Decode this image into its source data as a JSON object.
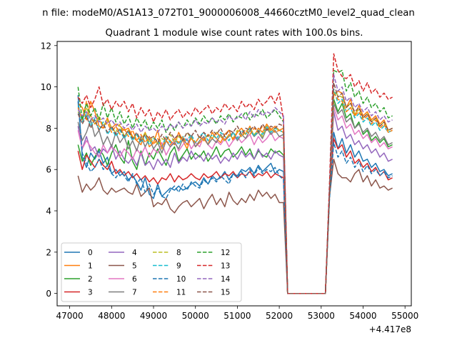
{
  "chart_data": {
    "type": "line",
    "suptitle": "n file: modeM0/AS1A13_072T01_9000006008_44660cztM0_level2_quad_clean",
    "title": "Quadrant 1 module wise count rates with 100.0s bins.",
    "xlabel": "",
    "ylabel": "",
    "x_offset_label": "+4.417e8",
    "xlim": [
      46700,
      55150
    ],
    "ylim": [
      -0.6,
      12.2
    ],
    "x_ticks": [
      47000,
      48000,
      49000,
      50000,
      51000,
      52000,
      53000,
      54000,
      55000
    ],
    "y_ticks": [
      0,
      2,
      4,
      6,
      8,
      10,
      12
    ],
    "grid": false,
    "legend": {
      "placement": "lower-left",
      "columns": 4
    },
    "segments": {
      "seg1": {
        "x_start": 47200,
        "x_end": 52100,
        "step": 100
      },
      "gap": {
        "x": [
          52200,
          53100
        ],
        "values": 0
      },
      "seg2": {
        "x_start": 53200,
        "x_end": 54700,
        "step": 100
      }
    },
    "series": [
      {
        "name": "0",
        "color": "#1f77b4",
        "style": "solid",
        "seg1": [
          9.6,
          6.6,
          6.1,
          6.8,
          6.5,
          6.9,
          6.3,
          6.6,
          5.8,
          6.0,
          5.7,
          5.9,
          5.5,
          5.7,
          5.4,
          5.0,
          5.6,
          4.8,
          4.6,
          5.3,
          4.7,
          4.9,
          5.1,
          5.0,
          5.2,
          5.0,
          5.1,
          5.3,
          5.4,
          5.2,
          5.6,
          5.3,
          5.7,
          5.5,
          5.6,
          5.9,
          5.5,
          5.8,
          5.7,
          6.0,
          5.9,
          6.1,
          5.8,
          6.2,
          5.9,
          6.1,
          6.3,
          5.8,
          6.0,
          5.9
        ],
        "seg2": [
          4.8,
          7.8,
          7.0,
          7.5,
          6.8,
          7.2,
          6.6,
          6.9,
          6.4,
          6.5,
          6.1,
          6.3,
          5.9,
          6.0,
          5.7,
          5.8
        ]
      },
      {
        "name": "1",
        "color": "#ff7f0e",
        "style": "solid",
        "seg1": [
          9.2,
          9.0,
          8.4,
          9.3,
          8.8,
          8.1,
          8.0,
          8.5,
          8.0,
          8.2,
          8.1,
          7.9,
          8.0,
          7.6,
          7.4,
          7.2,
          7.8,
          7.1,
          7.3,
          7.9,
          7.0,
          7.6,
          7.4,
          7.2,
          7.8,
          7.4,
          7.0,
          7.6,
          7.1,
          7.3,
          7.5,
          7.2,
          7.8,
          7.5,
          7.3,
          7.7,
          7.9,
          7.4,
          7.8,
          8.0,
          7.7,
          8.1,
          7.6,
          8.0,
          7.8,
          8.2,
          7.9,
          8.1,
          7.9,
          8.0
        ],
        "seg2": [
          5.0,
          9.6,
          9.8,
          9.7,
          9.0,
          9.4,
          8.6,
          9.1,
          8.6,
          8.8,
          8.4,
          8.6,
          8.2,
          8.4,
          7.9,
          8.0
        ]
      },
      {
        "name": "2",
        "color": "#2ca02c",
        "style": "solid",
        "seg1": [
          7.2,
          6.4,
          6.8,
          6.2,
          6.6,
          7.0,
          6.7,
          6.2,
          6.8,
          7.2,
          6.6,
          6.3,
          7.4,
          6.4,
          6.0,
          6.9,
          6.2,
          6.8,
          6.5,
          7.0,
          6.6,
          6.2,
          6.8,
          7.1,
          6.4,
          6.7,
          7.0,
          6.5,
          6.8,
          6.6,
          6.9,
          6.4,
          6.7,
          7.1,
          6.6,
          6.9,
          7.0,
          6.6,
          6.8,
          7.1,
          6.7,
          7.0,
          6.5,
          6.9,
          6.7,
          6.6,
          7.0,
          6.8,
          6.9,
          6.7
        ],
        "seg2": [
          4.8,
          9.4,
          8.8,
          9.2,
          8.5,
          8.7,
          8.0,
          8.3,
          7.7,
          7.9,
          7.4,
          7.6,
          7.3,
          7.5,
          7.1,
          7.2
        ]
      },
      {
        "name": "3",
        "color": "#d62728",
        "style": "solid",
        "seg1": [
          6.9,
          6.0,
          6.7,
          6.4,
          6.1,
          6.5,
          6.2,
          6.0,
          6.4,
          5.8,
          6.0,
          5.7,
          5.9,
          5.6,
          5.8,
          5.5,
          5.7,
          5.4,
          5.6,
          5.3,
          5.6,
          5.5,
          5.8,
          5.4,
          5.7,
          5.5,
          5.6,
          5.8,
          5.6,
          5.5,
          5.8,
          5.6,
          5.7,
          5.9,
          5.6,
          5.8,
          5.7,
          5.9,
          5.6,
          5.8,
          5.7,
          5.9,
          5.6,
          5.8,
          5.7,
          5.9,
          5.6,
          5.8,
          5.7,
          5.6
        ],
        "seg2": [
          4.9,
          7.5,
          7.0,
          7.2,
          6.6,
          6.9,
          6.3,
          6.5,
          6.1,
          6.3,
          5.9,
          6.1,
          5.7,
          5.9,
          5.5,
          5.6
        ]
      },
      {
        "name": "4",
        "color": "#9467bd",
        "style": "solid",
        "seg1": [
          8.1,
          7.0,
          7.6,
          6.9,
          7.1,
          6.6,
          7.0,
          6.8,
          7.2,
          6.5,
          6.9,
          6.5,
          6.3,
          6.6,
          6.2,
          6.8,
          6.2,
          6.4,
          6.0,
          6.5,
          6.2,
          6.5,
          6.1,
          6.8,
          6.3,
          6.6,
          6.4,
          6.9,
          6.5,
          6.7,
          6.4,
          6.8,
          6.5,
          6.7,
          6.3,
          6.6,
          6.4,
          6.8,
          6.5,
          6.9,
          6.6,
          6.8,
          6.5,
          7.0,
          6.6,
          6.8,
          6.5,
          6.9,
          6.7,
          6.6
        ],
        "seg2": [
          5.0,
          8.8,
          7.9,
          8.1,
          7.5,
          7.7,
          7.2,
          7.4,
          7.0,
          7.2,
          6.8,
          7.0,
          6.6,
          6.8,
          6.4,
          6.5
        ]
      },
      {
        "name": "5",
        "color": "#8c564b",
        "style": "solid",
        "seg1": [
          5.7,
          4.9,
          5.3,
          5.0,
          5.2,
          5.6,
          5.0,
          4.8,
          5.1,
          4.9,
          5.0,
          5.1,
          4.9,
          4.8,
          5.3,
          4.7,
          4.9,
          5.1,
          4.2,
          4.4,
          4.3,
          4.6,
          4.1,
          3.9,
          4.2,
          4.4,
          4.5,
          4.2,
          4.4,
          4.6,
          4.1,
          4.5,
          4.8,
          4.3,
          4.6,
          4.2,
          4.9,
          4.5,
          4.3,
          4.6,
          4.4,
          4.8,
          4.5,
          5.0,
          4.7,
          4.9,
          4.6,
          4.8,
          4.4,
          4.4
        ],
        "seg2": [
          4.7,
          6.5,
          5.8,
          5.6,
          5.6,
          5.4,
          5.8,
          6.0,
          5.4,
          5.7,
          5.2,
          5.5,
          5.1,
          5.2,
          5.0,
          5.1
        ]
      },
      {
        "name": "6",
        "color": "#e377c2",
        "style": "solid",
        "seg1": [
          7.9,
          7.0,
          7.4,
          7.1,
          6.8,
          6.6,
          7.2,
          6.8,
          7.1,
          6.9,
          6.6,
          7.0,
          6.8,
          6.5,
          7.0,
          6.7,
          7.1,
          6.6,
          7.0,
          6.8,
          7.3,
          6.7,
          7.1,
          7.4,
          6.9,
          7.2,
          7.5,
          7.0,
          7.3,
          7.1,
          7.6,
          7.2,
          7.0,
          7.4,
          7.2,
          7.5,
          7.1,
          7.4,
          7.6,
          7.3,
          7.5,
          7.7,
          7.2,
          7.6,
          7.3,
          7.5,
          7.8,
          7.4,
          7.6,
          7.5
        ],
        "seg2": [
          5.0,
          9.0,
          8.4,
          8.6,
          8.0,
          8.2,
          7.7,
          7.9,
          7.5,
          7.7,
          7.3,
          7.5,
          7.1,
          7.3,
          7.0,
          7.1
        ]
      },
      {
        "name": "7",
        "color": "#7f7f7f",
        "style": "solid",
        "seg1": [
          8.3,
          7.4,
          7.8,
          8.4,
          7.6,
          7.9,
          7.2,
          7.6,
          7.1,
          7.8,
          7.3,
          7.6,
          7.0,
          7.4,
          6.9,
          7.6,
          7.1,
          7.5,
          7.0,
          7.3,
          6.8,
          7.4,
          7.1,
          7.3,
          7.0,
          7.5,
          7.2,
          7.6,
          7.1,
          7.4,
          7.6,
          7.2,
          7.5,
          7.3,
          7.7,
          7.4,
          7.6,
          7.8,
          7.4,
          7.7,
          7.5,
          7.9,
          7.6,
          7.8,
          7.5,
          8.0,
          7.7,
          7.9,
          7.6,
          7.7
        ],
        "seg2": [
          5.0,
          9.2,
          8.7,
          8.9,
          8.3,
          8.5,
          8.0,
          8.2,
          7.8,
          8.0,
          7.6,
          7.8,
          7.4,
          7.6,
          7.2,
          7.3
        ]
      },
      {
        "name": "8",
        "color": "#bcbd22",
        "style": "dashed",
        "seg1": [
          8.8,
          8.4,
          9.0,
          8.5,
          8.2,
          8.6,
          8.1,
          8.4,
          8.0,
          7.8,
          8.2,
          7.6,
          7.9,
          7.5,
          7.7,
          7.4,
          7.8,
          7.3,
          7.6,
          7.2,
          7.5,
          7.4,
          7.7,
          7.3,
          7.6,
          7.4,
          7.8,
          7.5,
          7.3,
          7.6,
          7.4,
          7.7,
          7.5,
          7.8,
          7.6,
          7.4,
          7.7,
          7.5,
          7.9,
          7.6,
          7.8,
          8.0,
          7.7,
          7.9,
          7.6,
          8.1,
          7.8,
          8.0,
          7.9,
          7.8
        ],
        "seg2": [
          5.1,
          9.8,
          9.6,
          9.5,
          9.0,
          9.2,
          8.7,
          8.9,
          8.5,
          8.7,
          8.3,
          8.5,
          8.1,
          8.3,
          7.9,
          8.0
        ]
      },
      {
        "name": "9",
        "color": "#17becf",
        "style": "dashed",
        "seg1": [
          9.1,
          8.3,
          8.7,
          8.1,
          8.5,
          7.9,
          8.3,
          7.7,
          8.0,
          7.6,
          7.9,
          7.5,
          7.8,
          7.4,
          7.7,
          7.3,
          7.6,
          7.2,
          7.5,
          7.4,
          7.1,
          7.6,
          7.3,
          7.5,
          7.2,
          7.6,
          7.4,
          7.7,
          7.3,
          7.6,
          7.8,
          7.4,
          7.7,
          7.5,
          7.8,
          7.6,
          7.4,
          7.8,
          7.5,
          7.9,
          7.7,
          8.0,
          7.6,
          7.9,
          7.7,
          8.1,
          7.8,
          8.0,
          7.9,
          7.8
        ],
        "seg2": [
          5.0,
          9.9,
          9.2,
          9.4,
          8.8,
          9.0,
          8.5,
          8.7,
          8.3,
          8.5,
          8.1,
          8.3,
          7.9,
          8.1,
          7.8,
          7.9
        ]
      },
      {
        "name": "10",
        "color": "#1f77b4",
        "style": "dashed",
        "seg1": [
          9.3,
          6.8,
          6.3,
          5.9,
          6.1,
          6.5,
          6.0,
          6.2,
          5.8,
          5.6,
          5.9,
          5.7,
          5.4,
          5.8,
          5.3,
          5.6,
          4.9,
          5.3,
          4.8,
          5.1,
          4.7,
          4.6,
          5.0,
          5.2,
          4.9,
          5.3,
          5.0,
          5.4,
          5.2,
          5.1,
          5.5,
          5.3,
          5.6,
          5.4,
          5.7,
          5.5,
          5.3,
          5.8,
          5.6,
          5.9,
          5.6,
          6.0,
          5.7,
          6.1,
          5.8,
          6.0,
          5.9,
          6.1,
          5.7,
          5.5
        ],
        "seg2": [
          4.6,
          7.3,
          6.6,
          6.9,
          6.3,
          6.6,
          6.1,
          6.4,
          5.9,
          6.2,
          5.8,
          6.0,
          5.7,
          5.9,
          5.6,
          5.7
        ]
      },
      {
        "name": "11",
        "color": "#ff7f0e",
        "style": "dashed",
        "seg1": [
          9.0,
          8.4,
          9.3,
          8.6,
          8.2,
          8.5,
          8.0,
          8.3,
          7.8,
          8.1,
          7.7,
          8.0,
          7.6,
          7.9,
          7.4,
          7.7,
          7.3,
          7.6,
          7.2,
          7.5,
          7.1,
          7.4,
          7.2,
          7.5,
          7.3,
          7.6,
          7.2,
          7.5,
          7.3,
          7.6,
          7.4,
          7.7,
          7.5,
          7.8,
          7.6,
          7.4,
          7.7,
          7.5,
          7.8,
          7.6,
          7.9,
          7.7,
          8.0,
          7.8,
          8.1,
          7.9,
          8.0,
          7.8,
          7.9,
          7.8
        ],
        "seg2": [
          5.0,
          9.7,
          9.4,
          9.3,
          8.8,
          9.0,
          8.6,
          8.8,
          8.4,
          8.6,
          8.2,
          8.4,
          8.0,
          8.2,
          7.8,
          7.9
        ]
      },
      {
        "name": "12",
        "color": "#2ca02c",
        "style": "dashed",
        "seg1": [
          10.0,
          8.4,
          9.2,
          8.6,
          9.0,
          8.4,
          9.2,
          8.5,
          9.0,
          8.3,
          8.8,
          8.2,
          8.6,
          8.0,
          8.5,
          8.1,
          8.4,
          7.9,
          8.3,
          8.0,
          8.4,
          7.8,
          8.2,
          7.9,
          8.3,
          8.0,
          8.4,
          8.1,
          8.5,
          8.2,
          8.6,
          8.3,
          8.5,
          8.2,
          8.6,
          8.4,
          8.7,
          8.3,
          8.6,
          8.5,
          8.8,
          8.4,
          8.7,
          8.6,
          8.9,
          8.5,
          8.7,
          8.9,
          8.6,
          8.3
        ],
        "seg2": [
          5.0,
          10.8,
          10.7,
          10.8,
          9.8,
          10.2,
          9.5,
          9.8,
          9.2,
          9.5,
          9.0,
          9.2,
          8.8,
          9.0,
          8.5,
          8.6
        ]
      },
      {
        "name": "13",
        "color": "#d62728",
        "style": "dashed",
        "seg1": [
          9.5,
          9.2,
          9.6,
          9.0,
          9.4,
          10.0,
          9.1,
          9.4,
          8.9,
          9.3,
          9.0,
          9.3,
          8.8,
          9.2,
          8.5,
          9.0,
          8.6,
          8.9,
          8.3,
          8.8,
          8.5,
          8.9,
          8.4,
          8.7,
          8.9,
          8.5,
          8.8,
          8.6,
          9.0,
          8.7,
          8.9,
          9.1,
          8.7,
          9.0,
          8.8,
          9.2,
          8.9,
          9.1,
          8.8,
          9.3,
          9.0,
          9.2,
          8.9,
          9.4,
          9.1,
          9.3,
          9.6,
          9.2,
          9.7,
          8.4
        ],
        "seg2": [
          5.4,
          11.6,
          10.8,
          10.5,
          10.4,
          10.6,
          10.0,
          10.3,
          9.8,
          10.2,
          9.7,
          9.9,
          9.5,
          9.7,
          9.4,
          9.5
        ]
      },
      {
        "name": "14",
        "color": "#9467bd",
        "style": "dashed",
        "seg1": [
          8.9,
          8.6,
          8.8,
          8.4,
          8.6,
          8.3,
          8.5,
          8.2,
          8.4,
          8.1,
          8.3,
          8.0,
          8.2,
          7.9,
          8.2,
          7.8,
          8.1,
          7.9,
          8.0,
          7.8,
          8.1,
          7.9,
          8.2,
          8.0,
          8.3,
          8.0,
          8.2,
          8.1,
          8.4,
          8.1,
          8.3,
          8.2,
          8.5,
          8.3,
          8.4,
          8.2,
          8.6,
          8.4,
          8.5,
          8.7,
          8.4,
          8.8,
          8.5,
          8.9,
          8.6,
          8.8,
          8.7,
          9.0,
          8.8,
          8.6
        ],
        "seg2": [
          5.1,
          10.6,
          9.8,
          10.0,
          9.3,
          9.5,
          9.0,
          9.2,
          8.8,
          9.0,
          8.6,
          8.8,
          8.4,
          8.6,
          8.3,
          8.4
        ]
      },
      {
        "name": "15",
        "color": "#8c564b",
        "style": "dashed",
        "seg1": [
          8.7,
          8.2,
          8.6,
          8.0,
          8.4,
          7.9,
          8.2,
          7.8,
          8.1,
          7.7,
          8.0,
          7.6,
          7.9,
          7.5,
          7.8,
          7.4,
          7.7,
          7.5,
          7.6,
          7.3,
          7.7,
          7.4,
          7.8,
          7.5,
          7.7,
          7.4,
          7.8,
          7.6,
          7.9,
          7.5,
          7.8,
          7.6,
          7.9,
          7.7,
          8.0,
          7.6,
          7.9,
          7.8,
          8.1,
          7.7,
          8.0,
          7.9,
          8.1,
          7.8,
          8.2,
          7.9,
          8.1,
          8.0,
          8.2,
          8.1
        ],
        "seg2": [
          4.9,
          10.2,
          9.5,
          9.7,
          9.0,
          9.2,
          8.8,
          9.0,
          8.5,
          8.7,
          8.3,
          8.5,
          8.1,
          8.3,
          7.9,
          8.0
        ]
      }
    ]
  }
}
